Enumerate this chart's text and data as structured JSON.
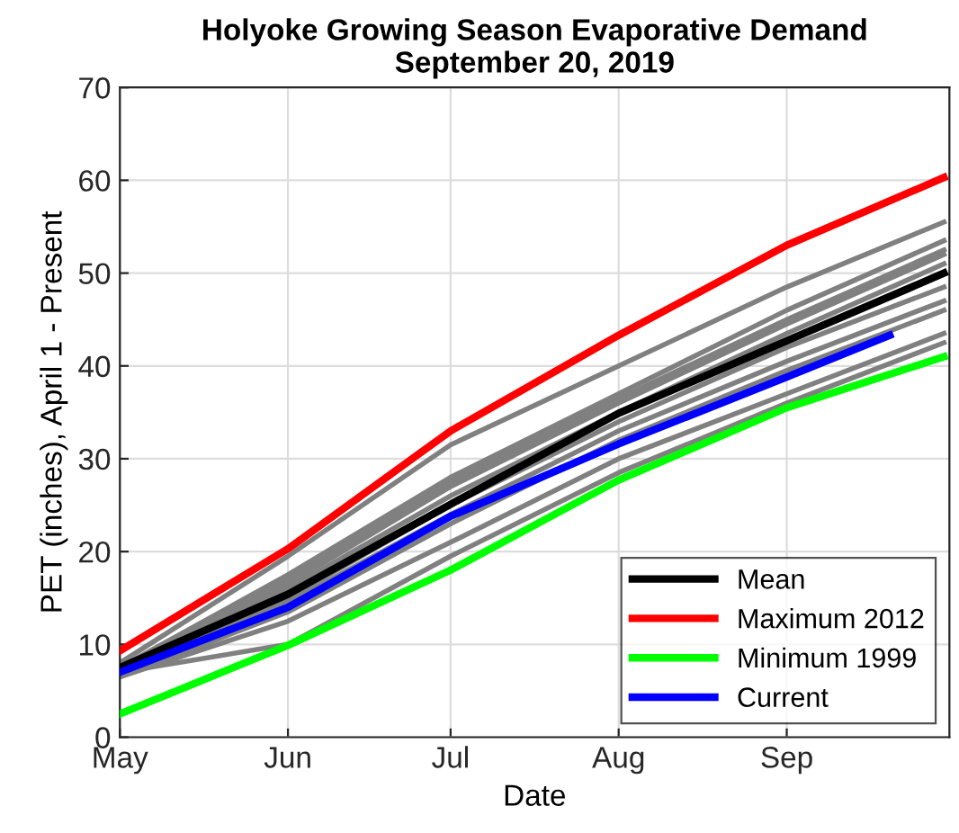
{
  "chart_data": {
    "type": "line",
    "title": "Holyoke Growing Season Evaporative Demand\nSeptember 20, 2019",
    "xlabel": "Date",
    "ylabel": "PET (inches), April 1 - Present",
    "x": [
      "2019-05-01",
      "2019-06-01",
      "2019-07-01",
      "2019-08-01",
      "2019-09-01",
      "2019-09-30"
    ],
    "series": [
      {
        "color": "#808080",
        "values": [
          8,
          19.5,
          31.5,
          40,
          48.5,
          55.5
        ]
      },
      {
        "color": "#808080",
        "values": [
          7.5,
          17.5,
          28,
          37,
          46,
          53.5
        ]
      },
      {
        "color": "#808080",
        "values": [
          7.5,
          17,
          27.5,
          36.5,
          45,
          52.5
        ]
      },
      {
        "color": "#808080",
        "values": [
          7,
          16.5,
          27,
          36,
          44.5,
          52
        ]
      },
      {
        "color": "#808080",
        "values": [
          7,
          16,
          26,
          35,
          43.5,
          51
        ]
      },
      {
        "color": "#808080",
        "values": [
          7,
          15,
          25,
          34,
          42,
          48.5
        ]
      },
      {
        "color": "#808080",
        "values": [
          6.5,
          14.5,
          24,
          33,
          40.5,
          47
        ]
      },
      {
        "color": "#808080",
        "values": [
          6.5,
          13.5,
          23,
          32,
          39.5,
          46
        ]
      },
      {
        "color": "#808080",
        "values": [
          6.5,
          12.5,
          21,
          30,
          37,
          43.5
        ]
      },
      {
        "color": "#808080",
        "values": [
          7,
          10,
          19.5,
          28.5,
          36,
          42.5
        ]
      },
      {
        "name": "Mean",
        "color": "#000000",
        "values": [
          7.5,
          15.4,
          25.1,
          34.9,
          42.7,
          50
        ]
      },
      {
        "name": "Maximum 2012",
        "color": "#ff0000",
        "values": [
          9.3,
          20.3,
          33,
          43.3,
          53,
          60.3
        ]
      },
      {
        "name": "Minimum 1999",
        "color": "#00ff00",
        "values": [
          2.5,
          9.9,
          18,
          27.7,
          35.5,
          41
        ]
      },
      {
        "name": "Current",
        "color": "#0000ff",
        "x": [
          "2019-05-01",
          "2019-06-01",
          "2019-07-01",
          "2019-08-01",
          "2019-09-01",
          "2019-09-20"
        ],
        "values": [
          7,
          14,
          23.8,
          31.6,
          38.8,
          43.3
        ]
      }
    ],
    "xlim": [
      "2019-05-01",
      "2019-10-01"
    ],
    "xticks": [
      {
        "value": "2019-05-01",
        "label": "May"
      },
      {
        "value": "2019-06-01",
        "label": "Jun"
      },
      {
        "value": "2019-07-01",
        "label": "Jul"
      },
      {
        "value": "2019-08-01",
        "label": "Aug"
      },
      {
        "value": "2019-09-01",
        "label": "Sep"
      }
    ],
    "ylim": [
      0,
      70
    ],
    "yticks": [
      0,
      10,
      20,
      30,
      40,
      50,
      60,
      70
    ],
    "grid": true,
    "legend": "bottom right",
    "marker": "none",
    "line_style": "solid"
  }
}
